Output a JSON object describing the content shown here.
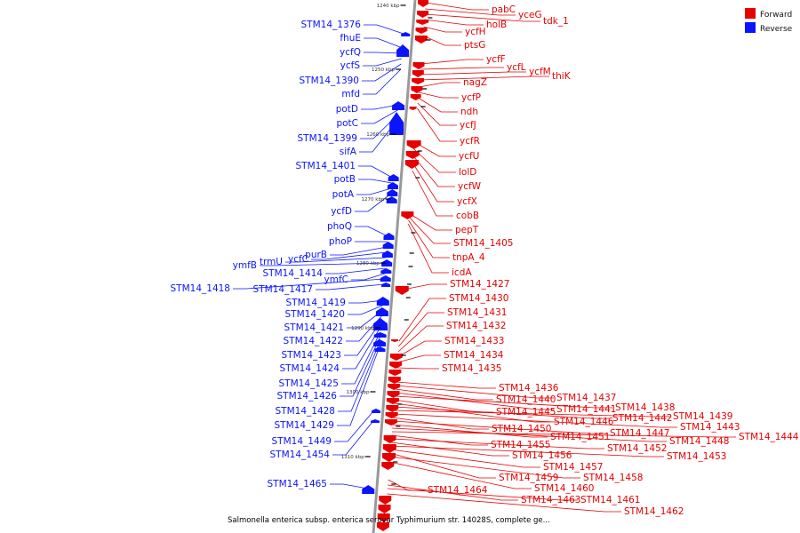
{
  "caption": "Salmonella enterica subsp. enterica serovar Typhimurium str. 14028S, complete ge...",
  "legend": [
    {
      "label": "Forward",
      "color": "#e60000"
    },
    {
      "label": "Reverse",
      "color": "#0a14ff"
    }
  ],
  "colors": {
    "forward": "#e60000",
    "reverse": "#0a14ff",
    "axis": "#999999"
  },
  "ticks": [
    "1240 kbp",
    "1250 kbp",
    "1260 kbp",
    "1270 kbp",
    "1280 kbp",
    "1290 kbp",
    "1300 kbp",
    "1310 kbp"
  ],
  "forward_labels": [
    "pabC",
    "yceG",
    "tdk_1",
    "holB",
    "ycfH",
    "ptsG",
    "ycfF",
    "ycfL",
    "ycfM",
    "thiK",
    "nagZ",
    "ycfP",
    "ndh",
    "ycfJ",
    "ycfR",
    "ycfU",
    "lolD",
    "ycfW",
    "ycfX",
    "cobB",
    "pepT",
    "STM14_1405",
    "tnpA_4",
    "icdA",
    "STM14_1427",
    "STM14_1430",
    "STM14_1431",
    "STM14_1432",
    "STM14_1433",
    "STM14_1434",
    "STM14_1435",
    "STM14_1436",
    "STM14_1437",
    "STM14_1440",
    "STM14_1441",
    "STM14_1438",
    "STM14_1445",
    "STM14_1446",
    "STM14_1442",
    "STM14_1439",
    "STM14_1443",
    "STM14_1450",
    "STM14_1447",
    "STM14_1451",
    "STM14_1448",
    "STM14_1444",
    "STM14_1455",
    "STM14_1452",
    "STM14_1456",
    "STM14_1453",
    "STM14_1457",
    "STM14_1459",
    "STM14_1458",
    "STM14_1460",
    "STM14_1464",
    "STM14_1463",
    "STM14_1461",
    "STM14_1462"
  ],
  "reverse_labels": [
    "STM14_1376",
    "fhuE",
    "ycfQ",
    "ycfS",
    "STM14_1390",
    "mfd",
    "potD",
    "potC",
    "STM14_1399",
    "sifA",
    "STM14_1401",
    "potB",
    "potA",
    "ycfD",
    "phoQ",
    "phoP",
    "purB",
    "ycfC",
    "trmU",
    "ymfB",
    "STM14_1414",
    "ymfC",
    "STM14_1418",
    "STM14_1417",
    "STM14_1419",
    "STM14_1420",
    "STM14_1421",
    "STM14_1422",
    "STM14_1423",
    "STM14_1424",
    "STM14_1425",
    "STM14_1426",
    "STM14_1428",
    "STM14_1429",
    "STM14_1449",
    "STM14_1454",
    "STM14_1465"
  ]
}
